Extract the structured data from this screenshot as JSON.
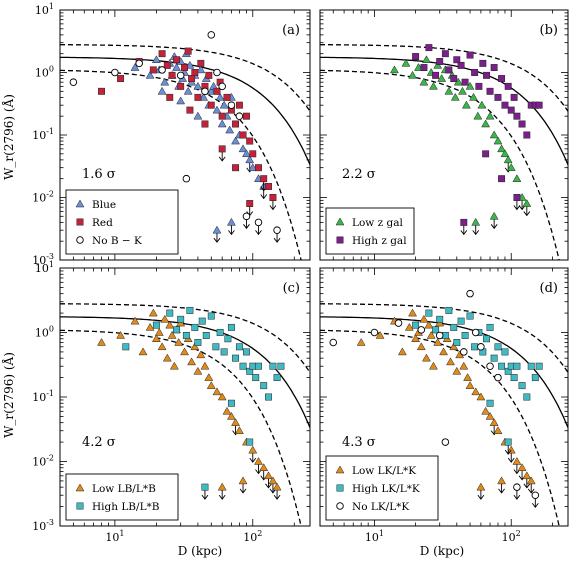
{
  "figure": {
    "xlabel": "D (kpc)",
    "ylabel": "W_r(2796) (Å)"
  },
  "chart_data": [
    {
      "type": "scatter",
      "panel": "(a)",
      "significance": "1.6 σ",
      "xscale": "log",
      "yscale": "log",
      "xlim": [
        4,
        260
      ],
      "ylim": [
        0.001,
        10
      ],
      "legend_position": "bottom-left",
      "series": [
        {
          "name": "Blue",
          "marker": "triangle",
          "color": "#6a8fd6",
          "x": [
            14,
            18,
            20,
            21,
            23,
            25,
            26,
            27,
            28,
            29,
            30,
            31,
            32,
            33,
            34,
            35,
            36,
            38,
            40,
            42,
            44,
            46,
            48,
            50,
            52,
            55,
            58,
            60,
            62,
            65,
            68,
            70,
            75,
            80,
            85,
            90,
            95,
            100,
            110,
            120,
            22,
            30,
            40,
            55,
            70
          ],
          "y": [
            1.2,
            0.9,
            1.6,
            1.1,
            0.7,
            1.4,
            0.9,
            1.8,
            1.2,
            0.6,
            1.5,
            0.8,
            1.0,
            2.0,
            0.5,
            1.3,
            0.7,
            0.9,
            0.6,
            1.1,
            0.4,
            0.8,
            0.3,
            0.5,
            0.6,
            0.25,
            0.4,
            0.15,
            0.3,
            0.2,
            0.12,
            0.4,
            0.08,
            0.1,
            0.06,
            0.05,
            0.04,
            0.03,
            0.02,
            0.015,
            0.5,
            0.35,
            0.2,
            0.003,
            0.004
          ]
        },
        {
          "name": "Red",
          "marker": "square",
          "color": "#c4223a",
          "x": [
            8,
            11,
            15,
            19,
            22,
            24,
            26,
            28,
            30,
            32,
            34,
            36,
            38,
            40,
            42,
            45,
            48,
            50,
            55,
            58,
            60,
            65,
            70,
            75,
            80,
            85,
            90,
            95,
            100,
            110,
            120,
            130,
            140,
            25,
            35,
            45,
            60,
            75,
            95
          ],
          "y": [
            0.5,
            0.8,
            1.5,
            1.1,
            2.0,
            1.3,
            0.9,
            1.6,
            0.6,
            1.2,
            2.2,
            0.8,
            1.0,
            0.4,
            1.4,
            0.6,
            0.9,
            0.3,
            0.5,
            0.7,
            0.2,
            0.4,
            0.25,
            0.15,
            0.3,
            0.1,
            0.2,
            0.08,
            0.05,
            0.03,
            0.02,
            0.015,
            0.01,
            0.4,
            0.25,
            0.15,
            0.06,
            0.03,
            0.008
          ]
        },
        {
          "name": "No B − K",
          "marker": "circle",
          "color": "#ffffff",
          "x": [
            5,
            10,
            15,
            22,
            30,
            33,
            45,
            50,
            55,
            60,
            70,
            80,
            90,
            110,
            150
          ],
          "y": [
            0.7,
            1.0,
            1.4,
            1.1,
            0.9,
            0.02,
            0.5,
            4.0,
            1.0,
            0.6,
            0.3,
            0.2,
            0.005,
            0.004,
            0.003
          ]
        }
      ]
    },
    {
      "type": "scatter",
      "panel": "(b)",
      "significance": "2.2 σ",
      "xscale": "log",
      "yscale": "log",
      "xlim": [
        4,
        260
      ],
      "ylim": [
        0.001,
        10
      ],
      "legend_position": "bottom-left",
      "series": [
        {
          "name": "Low z_gal",
          "marker": "triangle",
          "color": "#39b54a",
          "x": [
            14,
            17,
            19,
            21,
            23,
            24,
            26,
            27,
            29,
            31,
            33,
            35,
            37,
            39,
            41,
            44,
            47,
            50,
            53,
            57,
            61,
            65,
            70,
            75,
            80,
            85,
            90,
            95,
            100,
            110,
            120,
            130,
            55,
            75
          ],
          "y": [
            1.1,
            1.4,
            0.9,
            1.2,
            0.7,
            1.6,
            1.0,
            0.6,
            1.3,
            0.8,
            1.1,
            0.5,
            0.9,
            0.4,
            0.7,
            0.5,
            0.3,
            0.6,
            0.4,
            0.2,
            0.3,
            0.15,
            0.2,
            0.1,
            0.08,
            0.06,
            0.05,
            0.04,
            0.03,
            0.02,
            0.01,
            0.008,
            0.004,
            0.005
          ]
        },
        {
          "name": "High z_gal",
          "marker": "square",
          "color": "#7b1f8a",
          "x": [
            20,
            23,
            25,
            28,
            30,
            33,
            35,
            38,
            40,
            43,
            46,
            50,
            54,
            58,
            62,
            66,
            70,
            75,
            80,
            85,
            90,
            95,
            100,
            105,
            110,
            120,
            130,
            140,
            150,
            160,
            45,
            65,
            85,
            110
          ],
          "y": [
            1.8,
            1.2,
            2.5,
            0.9,
            1.5,
            2.0,
            1.1,
            0.8,
            1.6,
            1.3,
            0.7,
            1.9,
            1.0,
            0.6,
            1.4,
            0.9,
            0.5,
            1.2,
            0.4,
            0.8,
            0.3,
            0.6,
            0.25,
            0.4,
            0.2,
            0.15,
            0.1,
            0.3,
            0.3,
            0.3,
            0.004,
            0.05,
            0.02,
            0.01
          ]
        }
      ]
    },
    {
      "type": "scatter",
      "panel": "(c)",
      "significance": "4.2 σ",
      "xscale": "log",
      "yscale": "log",
      "xlim": [
        4,
        260
      ],
      "ylim": [
        0.001,
        10
      ],
      "legend_position": "bottom-left",
      "series": [
        {
          "name": "Low L_B/L_B*",
          "marker": "triangle",
          "color": "#e08a1a",
          "x": [
            8,
            11,
            14,
            16,
            18,
            19,
            20,
            21,
            22,
            23,
            24,
            25,
            26,
            27,
            28,
            29,
            30,
            32,
            34,
            36,
            38,
            40,
            42,
            45,
            48,
            50,
            55,
            60,
            65,
            70,
            75,
            80,
            90,
            100,
            110,
            120,
            130,
            140,
            150,
            60,
            85
          ],
          "y": [
            0.7,
            0.9,
            1.5,
            0.5,
            1.2,
            2.0,
            0.8,
            1.0,
            0.6,
            1.6,
            0.4,
            1.3,
            0.9,
            0.3,
            1.1,
            0.7,
            1.4,
            0.5,
            0.8,
            0.35,
            0.6,
            0.25,
            0.45,
            0.3,
            0.2,
            0.15,
            0.12,
            0.1,
            0.06,
            0.05,
            0.04,
            0.03,
            0.02,
            0.015,
            0.01,
            0.008,
            0.006,
            0.005,
            0.004,
            0.004,
            0.005
          ]
        },
        {
          "name": "High L_B/L_B*",
          "marker": "square",
          "color": "#3fbac2",
          "x": [
            12,
            20,
            25,
            28,
            30,
            33,
            35,
            38,
            40,
            43,
            46,
            50,
            54,
            58,
            62,
            66,
            70,
            75,
            80,
            85,
            90,
            95,
            100,
            105,
            110,
            120,
            130,
            140,
            150,
            160,
            45,
            70,
            95
          ],
          "y": [
            0.6,
            1.3,
            2.0,
            1.1,
            1.6,
            0.9,
            2.2,
            1.2,
            0.7,
            1.5,
            0.9,
            1.8,
            0.6,
            1.0,
            0.5,
            0.8,
            1.2,
            0.4,
            0.6,
            0.3,
            0.5,
            0.25,
            0.3,
            0.2,
            0.3,
            0.15,
            0.1,
            0.3,
            0.2,
            0.3,
            0.004,
            0.08,
            0.02
          ]
        }
      ]
    },
    {
      "type": "scatter",
      "panel": "(d)",
      "significance": "4.3 σ",
      "xscale": "log",
      "yscale": "log",
      "xlim": [
        4,
        260
      ],
      "ylim": [
        0.001,
        10
      ],
      "legend_position": "bottom-left",
      "series": [
        {
          "name": "Low L_K/L_K*",
          "marker": "triangle",
          "color": "#e08a1a",
          "x": [
            8,
            11,
            14,
            16,
            18,
            19,
            20,
            21,
            22,
            23,
            24,
            25,
            26,
            27,
            28,
            29,
            30,
            32,
            34,
            36,
            38,
            40,
            42,
            45,
            48,
            50,
            55,
            60,
            65,
            70,
            75,
            80,
            90,
            100,
            110,
            120,
            130,
            140,
            60,
            85
          ],
          "y": [
            0.7,
            0.9,
            1.5,
            0.5,
            1.2,
            2.0,
            0.8,
            1.0,
            0.6,
            1.6,
            0.4,
            1.3,
            0.9,
            0.3,
            1.1,
            0.7,
            1.4,
            0.5,
            0.8,
            0.35,
            0.6,
            0.25,
            0.45,
            0.3,
            0.2,
            0.15,
            0.12,
            0.1,
            0.06,
            0.05,
            0.04,
            0.03,
            0.02,
            0.015,
            0.01,
            0.008,
            0.006,
            0.005,
            0.004,
            0.005
          ]
        },
        {
          "name": "High L_K/L_K*",
          "marker": "square",
          "color": "#3fbac2",
          "x": [
            20,
            25,
            28,
            30,
            33,
            35,
            38,
            40,
            43,
            46,
            50,
            54,
            58,
            62,
            66,
            70,
            75,
            80,
            85,
            90,
            95,
            100,
            105,
            110,
            120,
            130,
            140,
            150,
            160,
            70,
            95
          ],
          "y": [
            1.3,
            2.0,
            1.1,
            1.6,
            0.9,
            2.2,
            1.2,
            0.7,
            1.5,
            0.9,
            1.8,
            0.6,
            1.0,
            0.5,
            0.8,
            1.2,
            0.4,
            0.6,
            0.3,
            0.5,
            0.25,
            0.3,
            0.2,
            0.3,
            0.15,
            0.1,
            0.3,
            0.2,
            0.3,
            0.08,
            0.02
          ]
        },
        {
          "name": "No L_K/L_K*",
          "marker": "circle",
          "color": "#ffffff",
          "x": [
            5,
            10,
            15,
            22,
            30,
            33,
            45,
            50,
            55,
            60,
            70,
            80,
            110,
            150
          ],
          "y": [
            0.7,
            1.0,
            1.4,
            1.1,
            0.9,
            0.02,
            0.5,
            4.0,
            1.0,
            0.6,
            0.3,
            0.2,
            0.004,
            0.003
          ]
        }
      ]
    }
  ],
  "model": {
    "curve_label": "",
    "solid": {
      "logW0": 0.25,
      "k": 1.0
    },
    "dashed_offsets_dex": [
      0.2,
      -0.2
    ]
  }
}
